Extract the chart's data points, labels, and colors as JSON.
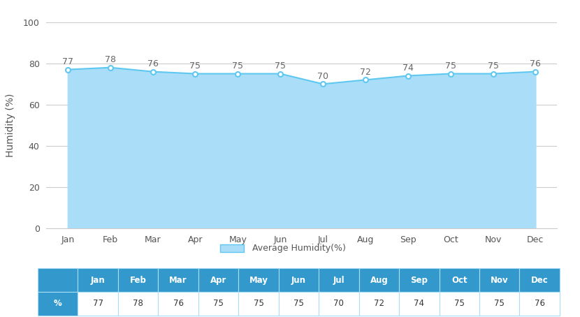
{
  "months": [
    "Jan",
    "Feb",
    "Mar",
    "Apr",
    "May",
    "Jun",
    "Jul",
    "Aug",
    "Sep",
    "Oct",
    "Nov",
    "Dec"
  ],
  "values": [
    77,
    78,
    76,
    75,
    75,
    75,
    70,
    72,
    74,
    75,
    75,
    76
  ],
  "ylabel": "Humidity (%)",
  "ylim": [
    0,
    100
  ],
  "yticks": [
    0,
    20,
    40,
    60,
    80,
    100
  ],
  "fill_color": "#aaddf8",
  "line_color": "#5ec8f0",
  "marker_color": "#5ec8f0",
  "marker_face": "#ffffff",
  "label_color": "#555555",
  "grid_color": "#cccccc",
  "legend_label": "Average Humidity(%)",
  "table_header_bg": "#3399cc",
  "table_header_text": "#ffffff",
  "table_row_label_bg": "#3399cc",
  "table_row_label_text": "#ffffff",
  "table_cell_bg": "#ffffff",
  "table_cell_text": "#333333",
  "table_border_color": "#aaddf8",
  "background_color": "#ffffff",
  "value_label_color": "#666666",
  "value_label_fontsize": 9,
  "axis_tick_fontsize": 9,
  "ylabel_fontsize": 10
}
